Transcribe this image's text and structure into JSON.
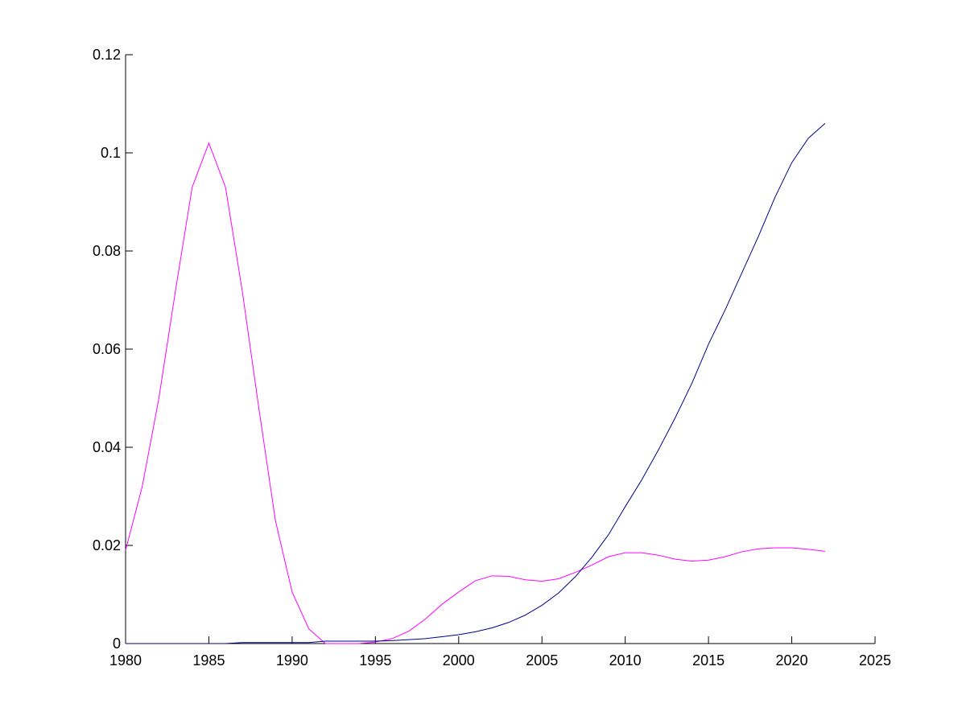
{
  "chart_data": {
    "type": "line",
    "x": [
      1980,
      1981,
      1982,
      1983,
      1984,
      1985,
      1986,
      1987,
      1988,
      1989,
      1990,
      1991,
      1992,
      1993,
      1994,
      1995,
      1996,
      1997,
      1998,
      1999,
      2000,
      2001,
      2002,
      2003,
      2004,
      2005,
      2006,
      2007,
      2008,
      2009,
      2010,
      2011,
      2012,
      2013,
      2014,
      2015,
      2016,
      2017,
      2018,
      2019,
      2020,
      2021,
      2022
    ],
    "series": [
      {
        "color": "#ff00ff",
        "values": [
          0.019,
          0.032,
          0.05,
          0.072,
          0.093,
          0.102,
          0.093,
          0.072,
          0.048,
          0.025,
          0.0105,
          0.003,
          0.0,
          0.0,
          0.0,
          0.0003,
          0.001,
          0.0025,
          0.005,
          0.008,
          0.0105,
          0.0128,
          0.0138,
          0.0137,
          0.013,
          0.0127,
          0.0132,
          0.0145,
          0.016,
          0.0177,
          0.0185,
          0.0185,
          0.018,
          0.0172,
          0.0168,
          0.017,
          0.0177,
          0.0187,
          0.0193,
          0.0195,
          0.0195,
          0.0192,
          0.0188
        ]
      },
      {
        "color": "#00008b",
        "values": [
          0.0,
          0.0,
          0.0,
          0.0,
          0.0,
          0.0,
          0.0,
          0.0002,
          0.0002,
          0.0002,
          0.0002,
          0.0002,
          0.0005,
          0.0005,
          0.0005,
          0.0005,
          0.0006,
          0.0008,
          0.001,
          0.0014,
          0.0018,
          0.0024,
          0.0032,
          0.0043,
          0.0058,
          0.0078,
          0.0103,
          0.0136,
          0.0176,
          0.0222,
          0.0279,
          0.0334,
          0.0395,
          0.046,
          0.053,
          0.061,
          0.068,
          0.0755,
          0.083,
          0.091,
          0.098,
          0.103,
          0.106
        ]
      }
    ],
    "xlim": [
      1980,
      2025
    ],
    "xticks": [
      1980,
      1985,
      1990,
      1995,
      2000,
      2005,
      2010,
      2015,
      2020,
      2025
    ],
    "ylim": [
      0,
      0.12
    ],
    "yticks": [
      0,
      0.02,
      0.04,
      0.06,
      0.08,
      0.1,
      0.12
    ]
  }
}
